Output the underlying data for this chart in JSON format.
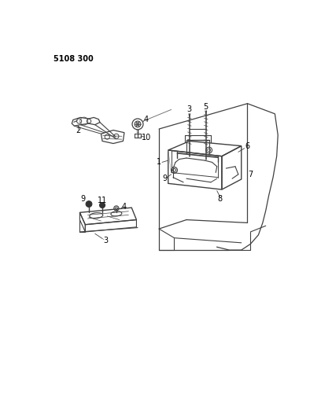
{
  "title": "5108 300",
  "bg_color": "#ffffff",
  "line_color": "#404040",
  "label_color": "#000000",
  "fig_width": 4.08,
  "fig_height": 5.33,
  "dpi": 100
}
